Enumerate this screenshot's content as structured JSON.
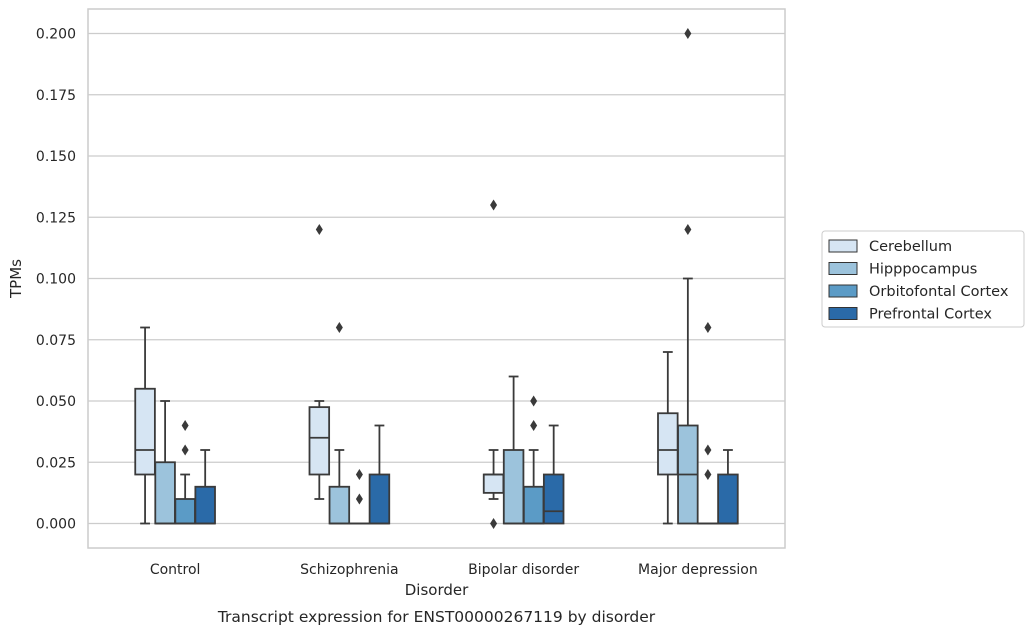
{
  "chart_data": {
    "type": "boxplot",
    "xlabel": "Disorder",
    "ylabel": "TPMs",
    "caption": "Transcript expression for ENST00000267119 by disorder",
    "ylim": [
      -0.01,
      0.21
    ],
    "yticks": [
      "0.000",
      "0.025",
      "0.050",
      "0.075",
      "0.100",
      "0.125",
      "0.150",
      "0.175",
      "0.200"
    ],
    "grid": "horizontal",
    "legend_position": "right",
    "categories": [
      "Control",
      "Schizophrenia",
      "Bipolar disorder",
      "Major depression"
    ],
    "series": [
      {
        "name": "Cerebellum",
        "color": "#d6e5f3",
        "boxes": [
          {
            "whislo": 0.0,
            "q1": 0.02,
            "med": 0.03,
            "q3": 0.055,
            "whishi": 0.08,
            "fliers": []
          },
          {
            "whislo": 0.01,
            "q1": 0.02,
            "med": 0.035,
            "q3": 0.0475,
            "whishi": 0.05,
            "fliers": [
              0.12
            ]
          },
          {
            "whislo": 0.01,
            "q1": 0.0125,
            "med": 0.02,
            "q3": 0.02,
            "whishi": 0.03,
            "fliers": [
              0.0,
              0.13
            ]
          },
          {
            "whislo": 0.0,
            "q1": 0.02,
            "med": 0.03,
            "q3": 0.045,
            "whishi": 0.07,
            "fliers": []
          }
        ]
      },
      {
        "name": "Hipppocampus",
        "color": "#9cc3dc",
        "boxes": [
          {
            "whislo": 0.0,
            "q1": 0.0,
            "med": 0.0,
            "q3": 0.025,
            "whishi": 0.05,
            "fliers": []
          },
          {
            "whislo": 0.0,
            "q1": 0.0,
            "med": 0.0,
            "q3": 0.015,
            "whishi": 0.03,
            "fliers": [
              0.08
            ]
          },
          {
            "whislo": 0.0,
            "q1": 0.0,
            "med": 0.0,
            "q3": 0.03,
            "whishi": 0.06,
            "fliers": []
          },
          {
            "whislo": 0.0,
            "q1": 0.0,
            "med": 0.02,
            "q3": 0.04,
            "whishi": 0.1,
            "fliers": [
              0.12,
              0.2
            ]
          }
        ]
      },
      {
        "name": "Orbitofontal Cortex",
        "color": "#5b9bc6",
        "boxes": [
          {
            "whislo": 0.0,
            "q1": 0.0,
            "med": 0.0,
            "q3": 0.01,
            "whishi": 0.02,
            "fliers": [
              0.03,
              0.04
            ]
          },
          {
            "whislo": 0.0,
            "q1": 0.0,
            "med": 0.0,
            "q3": 0.0,
            "whishi": 0.0,
            "fliers": [
              0.01,
              0.02
            ]
          },
          {
            "whislo": 0.0,
            "q1": 0.0,
            "med": 0.0,
            "q3": 0.015,
            "whishi": 0.03,
            "fliers": [
              0.04,
              0.05
            ]
          },
          {
            "whislo": 0.0,
            "q1": 0.0,
            "med": 0.0,
            "q3": 0.0,
            "whishi": 0.0,
            "fliers": [
              0.02,
              0.03,
              0.08
            ]
          }
        ]
      },
      {
        "name": "Prefrontal Cortex",
        "color": "#2a6aa8",
        "boxes": [
          {
            "whislo": 0.0,
            "q1": 0.0,
            "med": 0.0,
            "q3": 0.015,
            "whishi": 0.03,
            "fliers": []
          },
          {
            "whislo": 0.0,
            "q1": 0.0,
            "med": 0.0,
            "q3": 0.02,
            "whishi": 0.04,
            "fliers": []
          },
          {
            "whislo": 0.0,
            "q1": 0.0,
            "med": 0.005,
            "q3": 0.02,
            "whishi": 0.04,
            "fliers": []
          },
          {
            "whislo": 0.0,
            "q1": 0.0,
            "med": 0.0,
            "q3": 0.02,
            "whishi": 0.03,
            "fliers": []
          }
        ]
      }
    ]
  }
}
